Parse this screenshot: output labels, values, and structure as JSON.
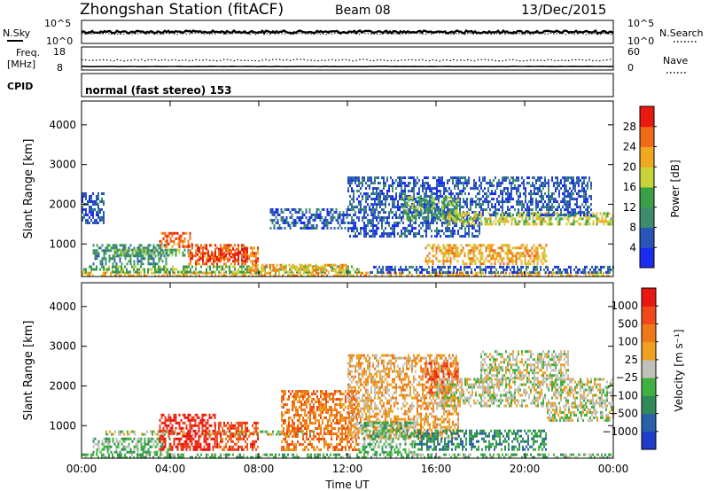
{
  "header": {
    "station": "Zhongshan Station (fitACF)",
    "beam": "Beam 08",
    "date": "13/Dec/2015",
    "cpid_label": "CPID",
    "cpid_text": "normal (fast stereo) 153"
  },
  "strip_labels": {
    "nsky": "N.Sky",
    "nsearch": "N.Search",
    "freq_line1": "Freq.",
    "freq_line2": "[MHz]",
    "nave": "Nave",
    "nsky_ticks": [
      "10^5",
      "10^0"
    ],
    "nsearch_ticks": [
      "10^5",
      "10^0"
    ],
    "freq_ticks": [
      "18",
      "8"
    ],
    "nave_ticks": [
      "60",
      "0"
    ]
  },
  "chart_data": [
    {
      "type": "heatmap",
      "panel": "power",
      "ylabel": "Slant Range [km]",
      "ylim": [
        180,
        4600
      ],
      "yticks": [
        "4000",
        "3000",
        "2000",
        "1000"
      ],
      "xlim": [
        0,
        24
      ],
      "colorbar_label": "Power [dB]",
      "colorbar_ticks": [
        "28",
        "24",
        "20",
        "16",
        "12",
        "8",
        "4"
      ],
      "colors": [
        "#1a2cf0",
        "#2a55b8",
        "#3d8c6e",
        "#3aa048",
        "#c8d23a",
        "#f0a820",
        "#f06a18",
        "#e81a10"
      ],
      "regions": [
        {
          "t0": 0.0,
          "t1": 24.0,
          "r0": 200,
          "r1": 300,
          "level": 5
        },
        {
          "t0": 0.0,
          "t1": 12.5,
          "r0": 300,
          "r1": 460,
          "level": 3
        },
        {
          "t0": 0.5,
          "t1": 3.8,
          "r0": 480,
          "r1": 1000,
          "level": 2
        },
        {
          "t0": 1.5,
          "t1": 4.8,
          "r0": 700,
          "r1": 880,
          "level": 3
        },
        {
          "t0": 3.5,
          "t1": 5.0,
          "r0": 900,
          "r1": 1300,
          "level": 6
        },
        {
          "t0": 4.8,
          "t1": 8.0,
          "r0": 500,
          "r1": 1000,
          "level": 6
        },
        {
          "t0": 5.2,
          "t1": 7.5,
          "r0": 600,
          "r1": 900,
          "level": 7
        },
        {
          "t0": 7.5,
          "t1": 12.0,
          "r0": 300,
          "r1": 500,
          "level": 5
        },
        {
          "t0": 8.5,
          "t1": 12.0,
          "r0": 1400,
          "r1": 1900,
          "level": 1
        },
        {
          "t0": 12.0,
          "t1": 18.0,
          "r0": 1200,
          "r1": 2700,
          "level": 1
        },
        {
          "t0": 14.5,
          "t1": 17.0,
          "r0": 1600,
          "r1": 2200,
          "level": 3
        },
        {
          "t0": 16.5,
          "t1": 24.0,
          "r0": 1500,
          "r1": 1800,
          "level": 4
        },
        {
          "t0": 18.0,
          "t1": 23.0,
          "r0": 1700,
          "r1": 2700,
          "level": 1
        },
        {
          "t0": 15.5,
          "t1": 21.0,
          "r0": 500,
          "r1": 1000,
          "level": 5
        },
        {
          "t0": 13.0,
          "t1": 24.0,
          "r0": 250,
          "r1": 450,
          "level": 1
        },
        {
          "t0": 0.0,
          "t1": 1.0,
          "r0": 1500,
          "r1": 2300,
          "level": 1
        }
      ]
    },
    {
      "type": "heatmap",
      "panel": "velocity",
      "ylabel": "Slant Range [km]",
      "ylim": [
        180,
        4600
      ],
      "yticks": [
        "4000",
        "3000",
        "2000",
        "1000"
      ],
      "xlim": [
        0,
        24
      ],
      "xticks": [
        "00:00",
        "04:00",
        "08:00",
        "12:00",
        "16:00",
        "20:00",
        "00:00"
      ],
      "xlabel": "Time UT",
      "colorbar_label": "Velocity [m s⁻¹]",
      "colorbar_ticks": [
        "1000",
        "500",
        "100",
        "25",
        "−25",
        "−100",
        "−500",
        "−1000"
      ],
      "colors": [
        "#1f3cc8",
        "#2a60a8",
        "#2f8a58",
        "#3fb040",
        "#c0c0b8",
        "#f0a020",
        "#f07818",
        "#f04818",
        "#e81810"
      ],
      "regions": [
        {
          "t0": 0.0,
          "t1": 24.0,
          "r0": 200,
          "r1": 300,
          "level": 3
        },
        {
          "t0": 0.5,
          "t1": 4.0,
          "r0": 300,
          "r1": 700,
          "level": 3
        },
        {
          "t0": 1.0,
          "t1": 10.5,
          "r0": 780,
          "r1": 880,
          "level": 4
        },
        {
          "t0": 3.5,
          "t1": 6.0,
          "r0": 400,
          "r1": 1300,
          "level": 8
        },
        {
          "t0": 6.0,
          "t1": 8.0,
          "r0": 400,
          "r1": 1100,
          "level": 7
        },
        {
          "t0": 9.0,
          "t1": 12.5,
          "r0": 400,
          "r1": 1900,
          "level": 6
        },
        {
          "t0": 12.0,
          "t1": 17.0,
          "r0": 700,
          "r1": 2800,
          "level": 5
        },
        {
          "t0": 15.5,
          "t1": 17.0,
          "r0": 1800,
          "r1": 2600,
          "level": 7
        },
        {
          "t0": 16.0,
          "t1": 24.0,
          "r0": 1500,
          "r1": 2200,
          "level": 4
        },
        {
          "t0": 18.0,
          "t1": 22.0,
          "r0": 2200,
          "r1": 2900,
          "level": 4
        },
        {
          "t0": 15.0,
          "t1": 21.0,
          "r0": 400,
          "r1": 900,
          "level": 2
        },
        {
          "t0": 12.5,
          "t1": 15.0,
          "r0": 300,
          "r1": 1100,
          "level": 3
        },
        {
          "t0": 21.0,
          "t1": 24.0,
          "r0": 1100,
          "r1": 1500,
          "level": 4
        }
      ]
    }
  ]
}
